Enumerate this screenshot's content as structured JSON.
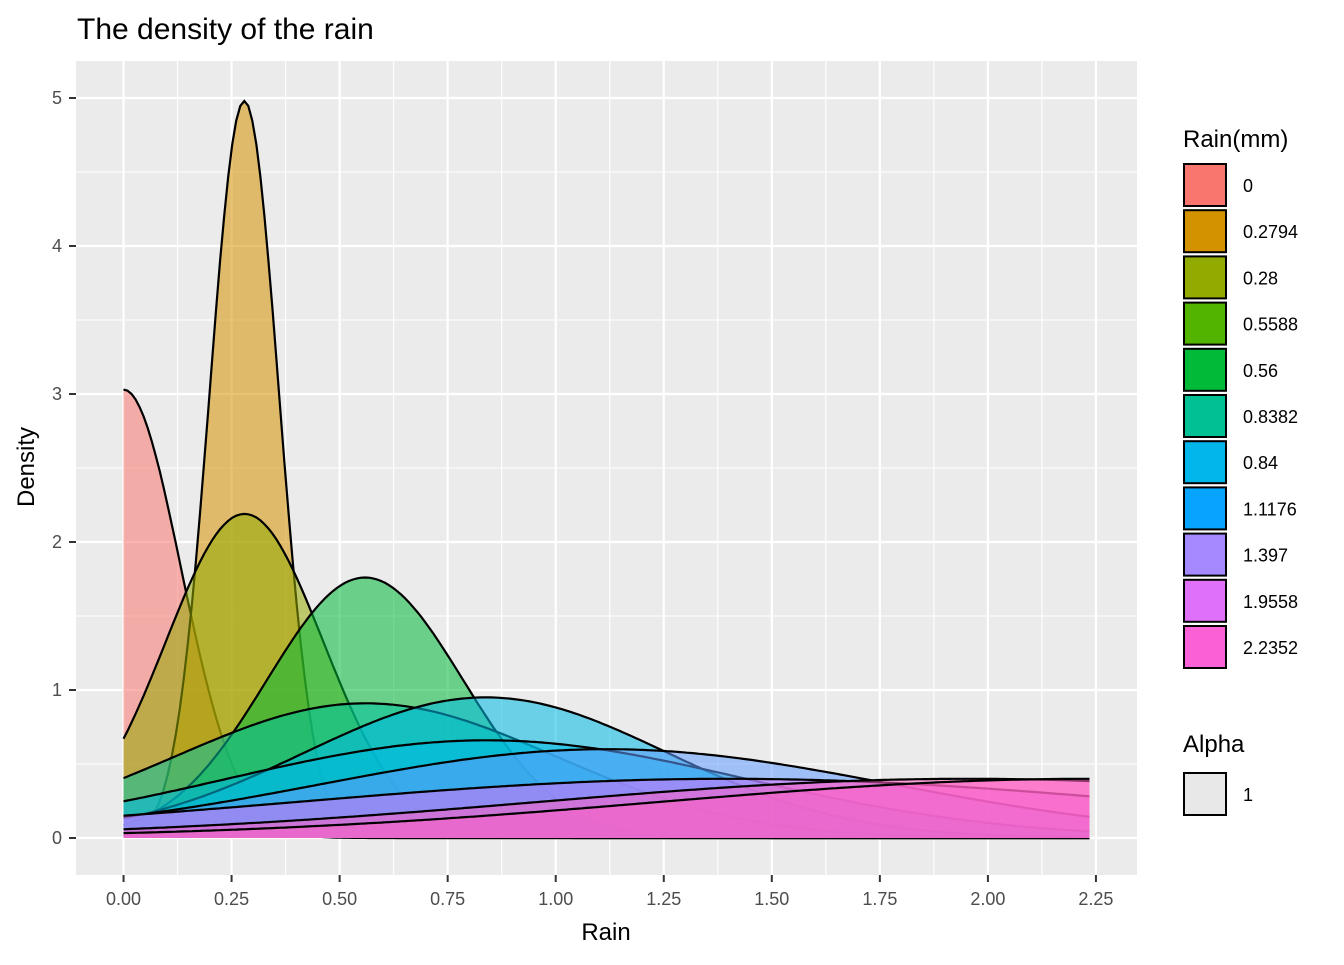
{
  "chart_data": {
    "type": "area",
    "title": "The density of the rain",
    "xlabel": "Rain",
    "ylabel": "Density",
    "xlim": [
      -0.11,
      2.345
    ],
    "ylim": [
      -0.25,
      5.25
    ],
    "x_ticks": [
      "0.00",
      "0.25",
      "0.50",
      "0.75",
      "1.00",
      "1.25",
      "1.50",
      "1.75",
      "2.00",
      "2.25"
    ],
    "x_tick_values": [
      0,
      0.25,
      0.5,
      0.75,
      1.0,
      1.25,
      1.5,
      1.75,
      2.0,
      2.25
    ],
    "y_ticks": [
      "0",
      "1",
      "2",
      "3",
      "4",
      "5"
    ],
    "y_tick_values": [
      0,
      1,
      2,
      3,
      4,
      5
    ],
    "x_range": [
      0,
      2.2352
    ],
    "grid": true,
    "legend_position": "right",
    "legend_fill_title": "Rain(mm)",
    "legend_alpha_title": "Alpha",
    "legend_alpha_label": "1",
    "series": [
      {
        "name": "0",
        "color": "#F8766D",
        "mean": 0.0,
        "sd": 0.132,
        "peak": 3.03
      },
      {
        "name": "0.2794",
        "color": "#D39200",
        "mean": 0.2794,
        "sd": 0.08,
        "peak": 4.98
      },
      {
        "name": "0.28",
        "color": "#93AA00",
        "mean": 0.28,
        "sd": 0.182,
        "peak": 2.19
      },
      {
        "name": "0.5588",
        "color": "#00BA38",
        "mean": 0.5588,
        "sd": 0.227,
        "peak": 1.76
      },
      {
        "name": "0.56",
        "color": "#00C19F",
        "mean": 0.56,
        "sd": 0.44,
        "peak": 0.91
      },
      {
        "name": "0.8382",
        "color": "#00B9E3",
        "mean": 0.8382,
        "sd": 0.42,
        "peak": 0.95
      },
      {
        "name": "0.84",
        "color": "#00B9E3",
        "mean": 0.84,
        "sd": 0.6,
        "peak": 0.66
      },
      {
        "name": "1.1176",
        "color": "#619CFF",
        "mean": 1.1176,
        "sd": 0.66,
        "peak": 0.6
      },
      {
        "name": "1.397",
        "color": "#DB72FB",
        "mean": 1.397,
        "sd": 1.0,
        "peak": 0.4
      },
      {
        "name": "1.9558",
        "color": "#FF61C3",
        "mean": 1.9558,
        "sd": 1.0,
        "peak": 0.4
      },
      {
        "name": "2.2352",
        "color": "#FF61C3",
        "mean": 2.2352,
        "sd": 1.0,
        "peak": 0.4
      }
    ],
    "legend_items": [
      {
        "label": "0",
        "color": "#F8766D"
      },
      {
        "label": "0.2794",
        "color": "#D39200"
      },
      {
        "label": "0.28",
        "color": "#93AA00"
      },
      {
        "label": "0.5588",
        "color": "#53B400"
      },
      {
        "label": "0.56",
        "color": "#00BA38"
      },
      {
        "label": "0.8382",
        "color": "#00C094"
      },
      {
        "label": "0.84",
        "color": "#00B6EB"
      },
      {
        "label": "1.1176",
        "color": "#06A4FF"
      },
      {
        "label": "1.397",
        "color": "#A58AFF"
      },
      {
        "label": "1.9558",
        "color": "#DF70F8"
      },
      {
        "label": "2.2352",
        "color": "#FB61D7"
      }
    ]
  }
}
